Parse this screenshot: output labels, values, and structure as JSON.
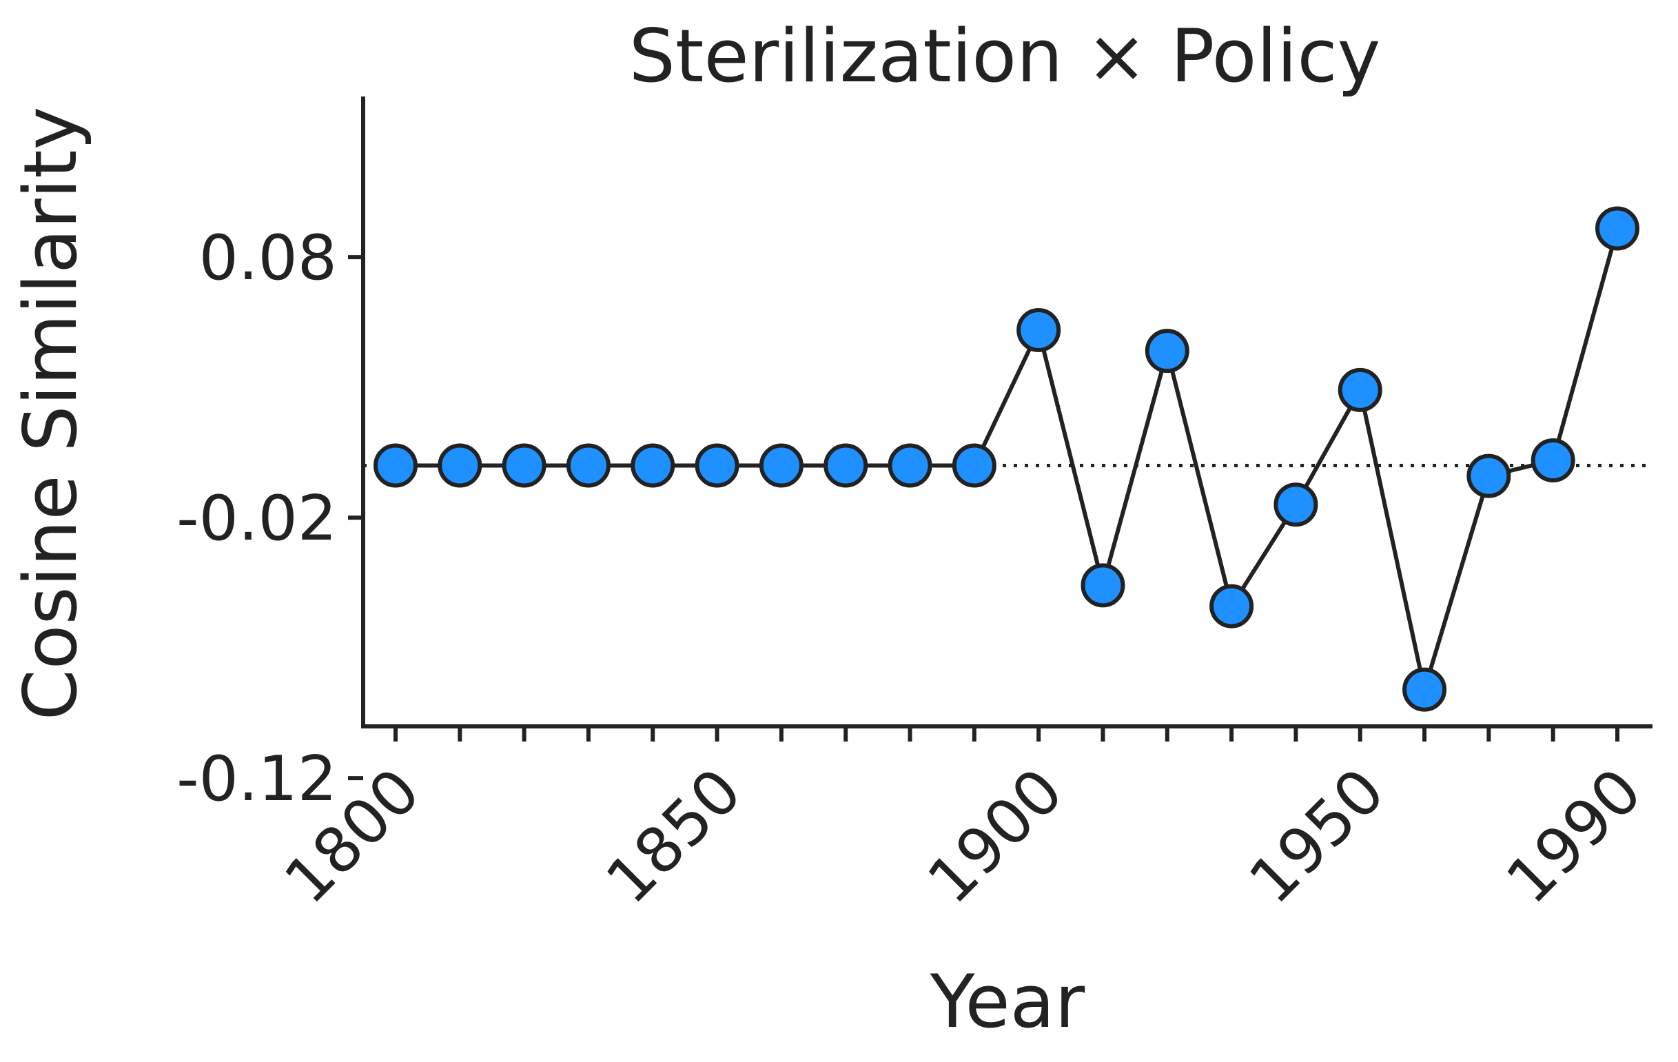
{
  "chart_data": {
    "type": "line",
    "title": "Sterilization × Policy",
    "xlabel": "Year",
    "ylabel": "Cosine Similarity",
    "x": [
      1800,
      1810,
      1820,
      1830,
      1840,
      1850,
      1860,
      1870,
      1880,
      1890,
      1900,
      1910,
      1920,
      1930,
      1940,
      1950,
      1960,
      1970,
      1980,
      1990
    ],
    "series": [
      {
        "values": [
          0.0,
          0.0,
          0.0,
          0.0,
          0.0,
          0.0,
          0.0,
          0.0,
          0.0,
          0.0,
          0.052,
          -0.046,
          0.044,
          -0.054,
          -0.015,
          0.029,
          -0.086,
          -0.004,
          0.002,
          0.091
        ]
      }
    ],
    "xticks": [
      "1800",
      "1850",
      "1900",
      "1950",
      "1990"
    ],
    "yticks": [
      "0.08",
      "-0.02",
      "-0.12"
    ],
    "xlim": [
      1795,
      1995
    ],
    "ylim": [
      -0.12,
      0.12
    ],
    "reference_line": 0,
    "grid": false,
    "colors": {
      "marker_fill": "#1E90FF",
      "line": "#222222",
      "marker_edge": "#222222",
      "axis": "#222222"
    }
  }
}
